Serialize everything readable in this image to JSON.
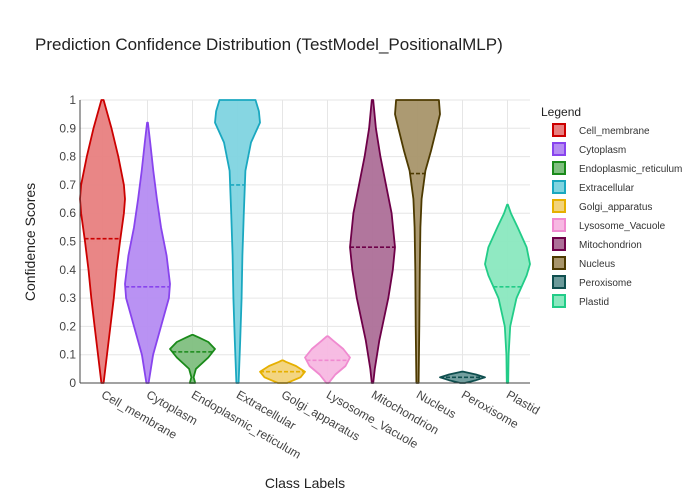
{
  "chart_data": {
    "type": "violin",
    "title": "Prediction Confidence Distribution (TestModel_PositionalMLP)",
    "xlabel": "Class Labels",
    "ylabel": "Confidence Scores",
    "ylim": [
      0,
      1
    ],
    "yticks": [
      "0",
      "0.1",
      "0.2",
      "0.3",
      "0.4",
      "0.5",
      "0.6",
      "0.7",
      "0.8",
      "0.9",
      "1"
    ],
    "legend_title": "Legend",
    "legend_position": "right",
    "grid": true,
    "categories": [
      "Cell_membrane",
      "Cytoplasm",
      "Endoplasmic_reticulum",
      "Extracellular",
      "Golgi_apparatus",
      "Lysosome_Vacuole",
      "Mitochondrion",
      "Nucleus",
      "Peroxisome",
      "Plastid"
    ],
    "series": [
      {
        "name": "Cell_membrane",
        "color": "#cc0000",
        "fill": "#e88080",
        "mean": 0.51,
        "min": 0.0,
        "max": 1.0,
        "profile": [
          [
            0.0,
            0.05
          ],
          [
            0.1,
            0.2
          ],
          [
            0.2,
            0.35
          ],
          [
            0.3,
            0.5
          ],
          [
            0.4,
            0.62
          ],
          [
            0.5,
            0.78
          ],
          [
            0.6,
            0.95
          ],
          [
            0.65,
            1.0
          ],
          [
            0.7,
            0.95
          ],
          [
            0.8,
            0.7
          ],
          [
            0.9,
            0.4
          ],
          [
            1.0,
            0.05
          ]
        ]
      },
      {
        "name": "Cytoplasm",
        "color": "#8844ee",
        "fill": "#b58cf2",
        "mean": 0.34,
        "min": 0.0,
        "max": 0.92,
        "profile": [
          [
            0.0,
            0.05
          ],
          [
            0.1,
            0.25
          ],
          [
            0.2,
            0.6
          ],
          [
            0.3,
            0.95
          ],
          [
            0.35,
            1.0
          ],
          [
            0.45,
            0.85
          ],
          [
            0.55,
            0.6
          ],
          [
            0.65,
            0.42
          ],
          [
            0.75,
            0.26
          ],
          [
            0.85,
            0.12
          ],
          [
            0.92,
            0.02
          ]
        ]
      },
      {
        "name": "Endoplasmic_reticulum",
        "color": "#1a8a1a",
        "fill": "#7fbf7f",
        "mean": 0.11,
        "min": 0.0,
        "max": 0.17,
        "profile": [
          [
            0.0,
            0.12
          ],
          [
            0.02,
            0.05
          ],
          [
            0.05,
            0.15
          ],
          [
            0.09,
            0.7
          ],
          [
            0.12,
            1.0
          ],
          [
            0.145,
            0.7
          ],
          [
            0.16,
            0.3
          ],
          [
            0.17,
            0.03
          ]
        ]
      },
      {
        "name": "Extracellular",
        "color": "#1aa8c0",
        "fill": "#80d4e0",
        "mean": 0.7,
        "min": 0.0,
        "max": 1.0,
        "profile": [
          [
            0.0,
            0.05
          ],
          [
            0.15,
            0.12
          ],
          [
            0.3,
            0.18
          ],
          [
            0.45,
            0.22
          ],
          [
            0.6,
            0.28
          ],
          [
            0.75,
            0.35
          ],
          [
            0.85,
            0.6
          ],
          [
            0.92,
            1.0
          ],
          [
            0.96,
            0.95
          ],
          [
            1.0,
            0.8
          ]
        ]
      },
      {
        "name": "Golgi_apparatus",
        "color": "#e6b000",
        "fill": "#f2d37a",
        "mean": 0.04,
        "min": 0.0,
        "max": 0.08,
        "profile": [
          [
            0.0,
            0.2
          ],
          [
            0.02,
            0.8
          ],
          [
            0.04,
            1.0
          ],
          [
            0.06,
            0.6
          ],
          [
            0.075,
            0.15
          ],
          [
            0.08,
            0.03
          ]
        ]
      },
      {
        "name": "Lysosome_Vacuole",
        "color": "#f08ad0",
        "fill": "#f7b8e2",
        "mean": 0.08,
        "min": 0.0,
        "max": 0.165,
        "profile": [
          [
            0.0,
            0.05
          ],
          [
            0.03,
            0.35
          ],
          [
            0.06,
            0.8
          ],
          [
            0.09,
            1.0
          ],
          [
            0.12,
            0.7
          ],
          [
            0.15,
            0.25
          ],
          [
            0.165,
            0.03
          ]
        ]
      },
      {
        "name": "Mitochondrion",
        "color": "#6e0048",
        "fill": "#ad6f98",
        "mean": 0.48,
        "min": 0.0,
        "max": 1.0,
        "profile": [
          [
            0.0,
            0.03
          ],
          [
            0.05,
            0.1
          ],
          [
            0.15,
            0.3
          ],
          [
            0.3,
            0.7
          ],
          [
            0.4,
            0.9
          ],
          [
            0.48,
            1.0
          ],
          [
            0.6,
            0.85
          ],
          [
            0.7,
            0.6
          ],
          [
            0.8,
            0.35
          ],
          [
            0.9,
            0.15
          ],
          [
            1.0,
            0.03
          ]
        ]
      },
      {
        "name": "Nucleus",
        "color": "#4d3a00",
        "fill": "#a8956a",
        "mean": 0.74,
        "min": 0.0,
        "max": 1.0,
        "profile": [
          [
            0.0,
            0.05
          ],
          [
            0.2,
            0.08
          ],
          [
            0.4,
            0.1
          ],
          [
            0.55,
            0.13
          ],
          [
            0.65,
            0.18
          ],
          [
            0.75,
            0.35
          ],
          [
            0.82,
            0.6
          ],
          [
            0.9,
            0.85
          ],
          [
            0.95,
            1.0
          ],
          [
            1.0,
            0.95
          ]
        ]
      },
      {
        "name": "Peroxisome",
        "color": "#0f4f4f",
        "fill": "#6b9a9a",
        "mean": 0.02,
        "min": 0.0,
        "max": 0.04,
        "profile": [
          [
            0.0,
            0.1
          ],
          [
            0.01,
            0.6
          ],
          [
            0.02,
            1.0
          ],
          [
            0.03,
            0.6
          ],
          [
            0.04,
            0.05
          ]
        ]
      },
      {
        "name": "Plastid",
        "color": "#22cc88",
        "fill": "#8ae8bf",
        "mean": 0.34,
        "min": 0.0,
        "max": 0.63,
        "profile": [
          [
            0.0,
            0.03
          ],
          [
            0.1,
            0.05
          ],
          [
            0.2,
            0.12
          ],
          [
            0.3,
            0.4
          ],
          [
            0.38,
            0.85
          ],
          [
            0.42,
            1.0
          ],
          [
            0.48,
            0.85
          ],
          [
            0.55,
            0.45
          ],
          [
            0.6,
            0.15
          ],
          [
            0.63,
            0.02
          ]
        ]
      }
    ]
  }
}
